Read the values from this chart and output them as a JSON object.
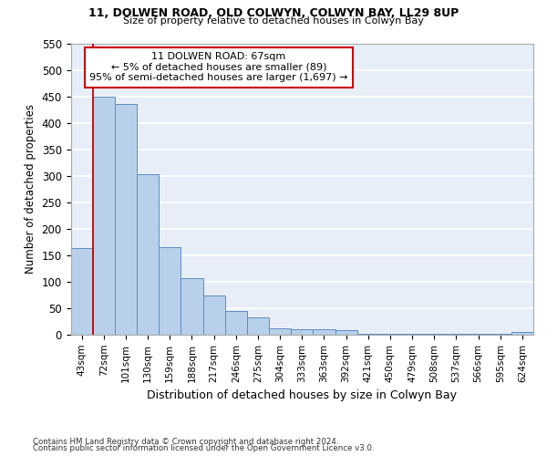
{
  "title1": "11, DOLWEN ROAD, OLD COLWYN, COLWYN BAY, LL29 8UP",
  "title2": "Size of property relative to detached houses in Colwyn Bay",
  "xlabel": "Distribution of detached houses by size in Colwyn Bay",
  "ylabel": "Number of detached properties",
  "footer1": "Contains HM Land Registry data © Crown copyright and database right 2024.",
  "footer2": "Contains public sector information licensed under the Open Government Licence v3.0.",
  "bin_labels": [
    "43sqm",
    "72sqm",
    "101sqm",
    "130sqm",
    "159sqm",
    "188sqm",
    "217sqm",
    "246sqm",
    "275sqm",
    "304sqm",
    "333sqm",
    "363sqm",
    "392sqm",
    "421sqm",
    "450sqm",
    "479sqm",
    "508sqm",
    "537sqm",
    "566sqm",
    "595sqm",
    "624sqm"
  ],
  "bar_values": [
    163,
    450,
    436,
    303,
    165,
    107,
    74,
    44,
    32,
    11,
    10,
    10,
    8,
    1,
    1,
    1,
    1,
    1,
    1,
    1,
    5
  ],
  "bar_color": "#b8d0ea",
  "bar_edge_color": "#5b8ec4",
  "bg_color": "#e8eef8",
  "grid_color": "#ffffff",
  "marker_label": "11 DOLWEN ROAD: 67sqm",
  "marker_line1": "← 5% of detached houses are smaller (89)",
  "marker_line2": "95% of semi-detached houses are larger (1,697) →",
  "annotation_box_color": "#cc0000",
  "ylim": [
    0,
    550
  ],
  "yticks": [
    0,
    50,
    100,
    150,
    200,
    250,
    300,
    350,
    400,
    450,
    500,
    550
  ]
}
